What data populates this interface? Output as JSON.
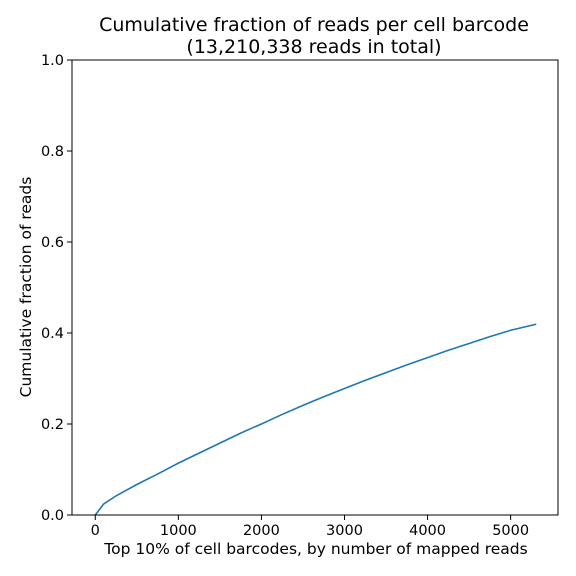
{
  "chart_data": {
    "type": "line",
    "title": "Cumulative fraction of reads per cell barcode",
    "subtitle": "(13,210,338 reads in total)",
    "xlabel": "Top 10% of cell barcodes, by number of mapped reads",
    "ylabel": "Cumulative fraction of reads",
    "xlim": [
      -280,
      5570
    ],
    "ylim": [
      0.0,
      1.0
    ],
    "x_ticks": [
      0,
      1000,
      2000,
      3000,
      4000,
      5000
    ],
    "x_tick_labels": [
      "0",
      "1000",
      "2000",
      "3000",
      "4000",
      "5000"
    ],
    "y_ticks": [
      0.0,
      0.2,
      0.4,
      0.6,
      0.8,
      1.0
    ],
    "y_tick_labels": [
      "0.0",
      "0.2",
      "0.4",
      "0.6",
      "0.8",
      "1.0"
    ],
    "grid": false,
    "series": [
      {
        "color": "#1f77b4",
        "x": [
          0,
          100,
          250,
          500,
          750,
          1000,
          1250,
          1500,
          1750,
          2000,
          2250,
          2500,
          2750,
          3000,
          3250,
          3500,
          3750,
          4000,
          4250,
          4500,
          4750,
          5000,
          5300
        ],
        "y": [
          0.0,
          0.024,
          0.042,
          0.067,
          0.09,
          0.114,
          0.136,
          0.158,
          0.18,
          0.2,
          0.221,
          0.241,
          0.26,
          0.278,
          0.296,
          0.313,
          0.33,
          0.346,
          0.362,
          0.377,
          0.392,
          0.406,
          0.419
        ]
      }
    ]
  }
}
